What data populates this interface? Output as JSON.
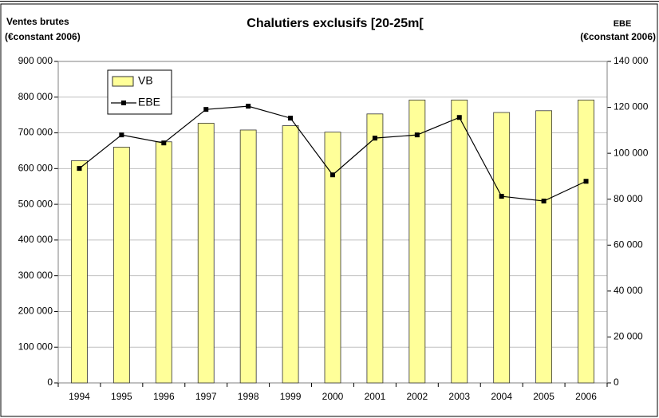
{
  "chart_data": {
    "type": "bar_line",
    "title": "Chalutiers exclusifs [20-25m[",
    "ylabel": [
      "Ventes brutes",
      "(€constant 2006)"
    ],
    "y2label": [
      "EBE",
      "(€constant 2006)"
    ],
    "categories": [
      "1994",
      "1995",
      "1996",
      "1997",
      "1998",
      "1999",
      "2000",
      "2001",
      "2002",
      "2003",
      "2004",
      "2005",
      "2006"
    ],
    "series": [
      {
        "name": "VB",
        "type": "bar",
        "color": "#ffff99",
        "values": [
          622000,
          660000,
          675000,
          727000,
          708000,
          720000,
          702000,
          753000,
          792000,
          792000,
          757000,
          762000,
          792000
        ]
      },
      {
        "name": "EBE",
        "type": "line",
        "axis": "y2",
        "color": "#000000",
        "values": [
          93400,
          108000,
          104500,
          119100,
          120500,
          115300,
          90600,
          106600,
          108000,
          115600,
          81250,
          79200,
          87800
        ]
      }
    ],
    "ylim": [
      0,
      900000
    ],
    "yticks": [
      0,
      {
        "value": 100000,
        "label": "100 000"
      },
      {
        "value": 200000,
        "label": "200 000"
      },
      {
        "value": 300000,
        "label": "300 000"
      },
      {
        "value": 400000,
        "label": "400 000"
      },
      {
        "value": 500000,
        "label": "500 000"
      },
      {
        "value": 600000,
        "label": "600 000"
      },
      {
        "value": 700000,
        "label": "700 000"
      },
      {
        "value": 800000,
        "label": "800 000"
      },
      {
        "value": 900000,
        "label": "900 000"
      }
    ],
    "y2lim": [
      0,
      140000
    ],
    "y2ticks": [
      0,
      {
        "value": 20000,
        "label": "20 000"
      },
      {
        "value": 40000,
        "label": "40 000"
      },
      {
        "value": 60000,
        "label": "60 000"
      },
      {
        "value": 80000,
        "label": "80 000"
      },
      {
        "value": 100000,
        "label": "100 000"
      },
      {
        "value": 120000,
        "label": "120 000"
      },
      {
        "value": 140000,
        "label": "140 000"
      }
    ],
    "grid": true,
    "legend": "upper left"
  }
}
